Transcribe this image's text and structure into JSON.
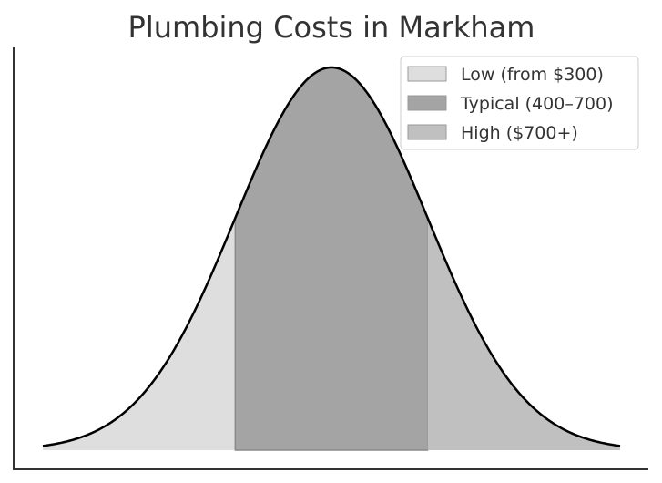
{
  "chart_data": {
    "type": "area",
    "title": "Plumbing Costs in Markham",
    "xlabel": "",
    "ylabel": "",
    "x_range": [
      -3,
      3
    ],
    "curve": "normal distribution",
    "mean": 0,
    "std_dev": 1,
    "grid": false,
    "axes_spines": [
      "left",
      "bottom"
    ],
    "ticks_visible": false,
    "legend_placement": "top-right",
    "curve_color": "#000000",
    "series": [
      {
        "name": "Low (from $300)",
        "x_range": [
          -3,
          -1
        ],
        "color": "#dedede"
      },
      {
        "name": "Typical (400–700)",
        "x_range": [
          -1,
          1
        ],
        "color": "#a4a4a4"
      },
      {
        "name": "High ($700+)",
        "x_range": [
          1,
          3
        ],
        "color": "#c0c0c0"
      }
    ]
  }
}
